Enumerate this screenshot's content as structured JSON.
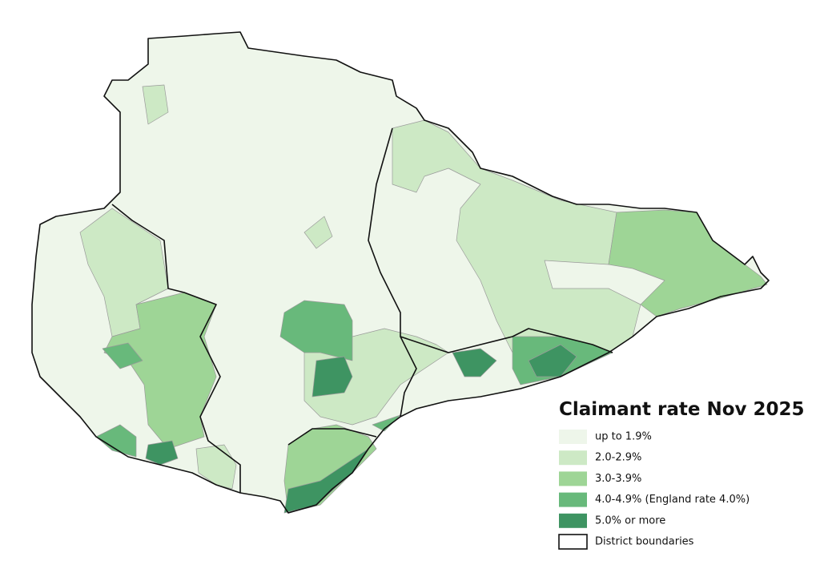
{
  "legend": {
    "title": "Claimant rate Nov 2025",
    "items": [
      {
        "label": "up to 1.9%",
        "color": "#eef6ea"
      },
      {
        "label": "2.0-2.9%",
        "color": "#cde9c5"
      },
      {
        "label": "3.0-3.9%",
        "color": "#9ed596"
      },
      {
        "label": "4.0-4.9% (England rate 4.0%)",
        "color": "#68b97b"
      },
      {
        "label": "5.0% or more",
        "color": "#3e9462"
      }
    ],
    "boundary_label": "District boundaries"
  }
}
